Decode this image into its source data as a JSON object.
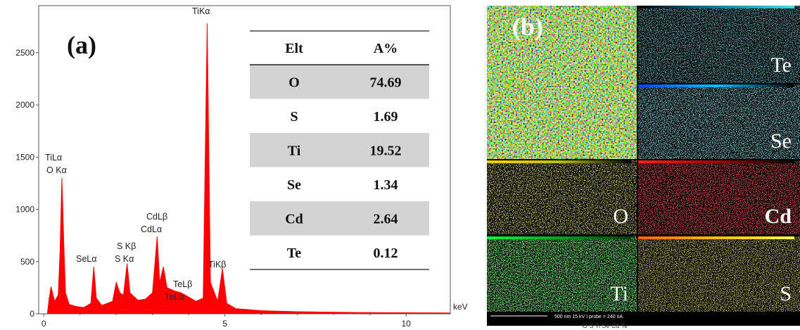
{
  "chart_data": {
    "type": "area",
    "panel_label": "(a)",
    "x_label": "keV",
    "color": "#ff0000",
    "x": [
      0.1,
      0.15,
      0.2,
      0.3,
      0.4,
      0.45,
      0.5,
      0.55,
      0.6,
      0.7,
      0.9,
      1.1,
      1.3,
      1.38,
      1.45,
      1.6,
      1.9,
      2.0,
      2.1,
      2.2,
      2.3,
      2.38,
      2.6,
      2.8,
      3.0,
      3.13,
      3.2,
      3.3,
      3.4,
      3.6,
      3.8,
      4.0,
      4.2,
      4.4,
      4.51,
      4.6,
      4.8,
      4.93,
      5.05,
      5.3,
      6,
      7,
      8,
      9,
      10,
      11.2
    ],
    "values": [
      0,
      150,
      260,
      120,
      180,
      600,
      1300,
      700,
      200,
      90,
      70,
      60,
      100,
      450,
      150,
      80,
      120,
      300,
      200,
      180,
      480,
      200,
      130,
      140,
      200,
      740,
      300,
      450,
      250,
      220,
      200,
      160,
      120,
      150,
      2780,
      300,
      120,
      430,
      100,
      50,
      30,
      20,
      15,
      12,
      10,
      8
    ],
    "xlim": [
      -0.14,
      11.22
    ],
    "ylim": [
      0,
      2950
    ],
    "xticks": [
      0,
      5,
      10
    ],
    "yticks": [
      0,
      500,
      1000,
      1500,
      2000,
      2500
    ],
    "annotations": [
      "TiLα",
      "O Kα",
      "SeLα",
      "S Kβ",
      "S Kα",
      "CdLβ",
      "CdLα",
      "TeLβ",
      "TeLα",
      "TiKα",
      "TiKβ"
    ]
  },
  "table": {
    "header": [
      "Elt",
      "A%"
    ],
    "rows": [
      [
        "O",
        "74.69"
      ],
      [
        "S",
        "1.69"
      ],
      [
        "Ti",
        "19.52"
      ],
      [
        "Se",
        "1.34"
      ],
      [
        "Cd",
        "2.64"
      ],
      [
        "Te",
        "0.12"
      ]
    ]
  },
  "maps": {
    "panel_label": "(b)",
    "labels": [
      "Te",
      "Se",
      "O",
      "Cd",
      "Ti",
      "S"
    ],
    "scale_bar": "500 nm   15 kV   I probe = 240 nA",
    "legend": "O  S  Ti Se Cd Te"
  }
}
